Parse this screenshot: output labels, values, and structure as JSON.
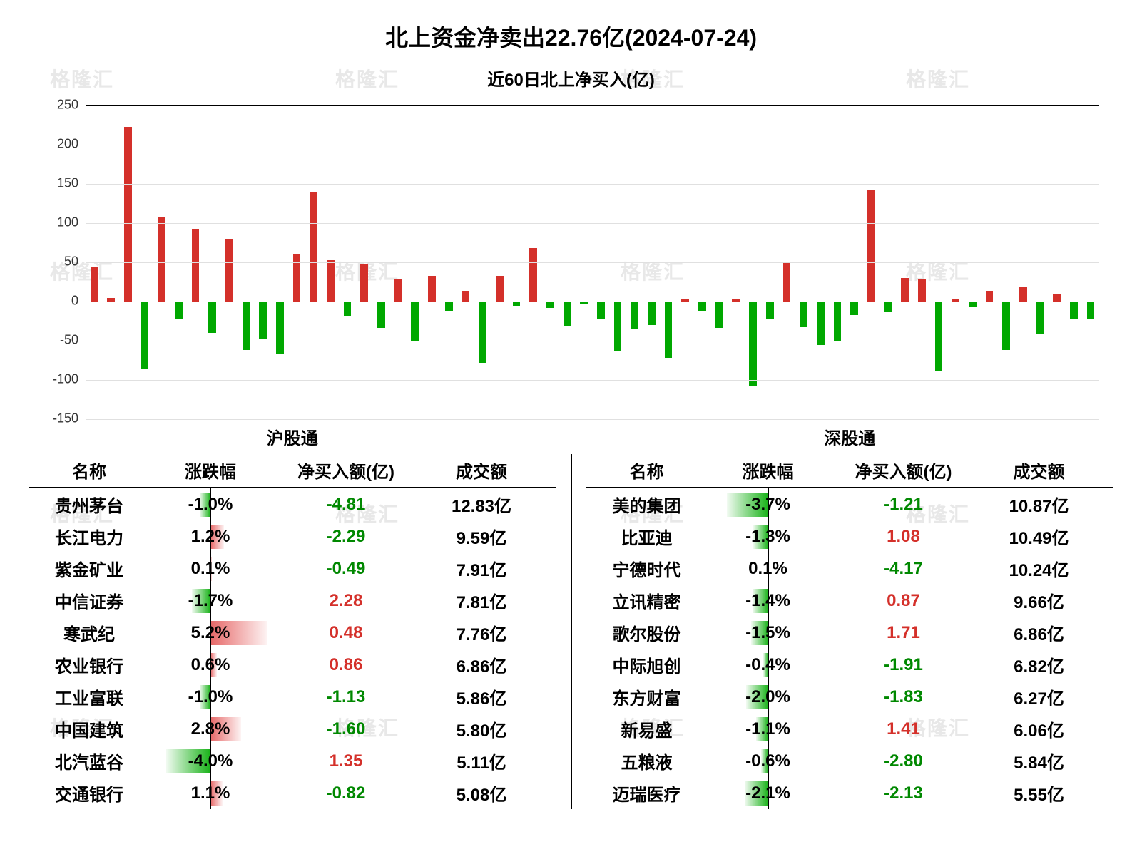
{
  "title": "北上资金净卖出22.76亿(2024-07-24)",
  "subtitle": "近60日北上净买入(亿)",
  "title_fontsize": 32,
  "subtitle_fontsize": 24,
  "watermark_text": "格隆汇",
  "chart": {
    "type": "bar",
    "ylim": [
      -150,
      250
    ],
    "yticks": [
      -150,
      -100,
      -50,
      0,
      50,
      100,
      150,
      200,
      250
    ],
    "tick_fontsize": 18,
    "grid_color": "#e0e0e0",
    "positive_color": "#d4302a",
    "negative_color": "#00a800",
    "background_color": "#ffffff",
    "bar_width_ratio": 0.45,
    "values": [
      45,
      5,
      223,
      -85,
      108,
      -22,
      93,
      -40,
      80,
      -62,
      -48,
      -66,
      60,
      139,
      53,
      -18,
      47,
      -34,
      28,
      -50,
      33,
      -12,
      14,
      -78,
      33,
      -5,
      68,
      -8,
      -32,
      -3,
      -23,
      -64,
      -35,
      -30,
      -72,
      3,
      -12,
      -34,
      3,
      -108,
      -22,
      49,
      -33,
      -55,
      -50,
      -17,
      142,
      -14,
      30,
      28,
      -88,
      3,
      -7,
      14,
      -62,
      19,
      -42,
      10,
      -22,
      -23
    ]
  },
  "tables": {
    "header_fontsize": 24,
    "cell_fontsize": 24,
    "section_title_fontsize": 24,
    "pos_color": "#d4302a",
    "neg_color": "#008800",
    "text_color": "#000000",
    "chg_bar_max_pct": 5.5,
    "columns": [
      "名称",
      "涨跌幅",
      "净买入额(亿)",
      "成交额"
    ],
    "left": {
      "title": "沪股通",
      "rows": [
        {
          "name": "贵州茅台",
          "chg": -1.0,
          "net": -4.81,
          "vol": "12.83亿"
        },
        {
          "name": "长江电力",
          "chg": 1.2,
          "net": -2.29,
          "vol": "9.59亿"
        },
        {
          "name": "紫金矿业",
          "chg": 0.1,
          "net": -0.49,
          "vol": "7.91亿"
        },
        {
          "name": "中信证券",
          "chg": -1.7,
          "net": 2.28,
          "vol": "7.81亿"
        },
        {
          "name": "寒武纪",
          "chg": 5.2,
          "net": 0.48,
          "vol": "7.76亿"
        },
        {
          "name": "农业银行",
          "chg": 0.6,
          "net": 0.86,
          "vol": "6.86亿"
        },
        {
          "name": "工业富联",
          "chg": -1.0,
          "net": -1.13,
          "vol": "5.86亿"
        },
        {
          "name": "中国建筑",
          "chg": 2.8,
          "net": -1.6,
          "vol": "5.80亿"
        },
        {
          "name": "北汽蓝谷",
          "chg": -4.0,
          "net": 1.35,
          "vol": "5.11亿"
        },
        {
          "name": "交通银行",
          "chg": 1.1,
          "net": -0.82,
          "vol": "5.08亿"
        }
      ]
    },
    "right": {
      "title": "深股通",
      "rows": [
        {
          "name": "美的集团",
          "chg": -3.7,
          "net": -1.21,
          "vol": "10.87亿"
        },
        {
          "name": "比亚迪",
          "chg": -1.3,
          "net": 1.08,
          "vol": "10.49亿"
        },
        {
          "name": "宁德时代",
          "chg": 0.1,
          "net": -4.17,
          "vol": "10.24亿"
        },
        {
          "name": "立讯精密",
          "chg": -1.4,
          "net": 0.87,
          "vol": "9.66亿"
        },
        {
          "name": "歌尔股份",
          "chg": -1.5,
          "net": 1.71,
          "vol": "6.86亿"
        },
        {
          "name": "中际旭创",
          "chg": -0.4,
          "net": -1.91,
          "vol": "6.82亿"
        },
        {
          "name": "东方财富",
          "chg": -2.0,
          "net": -1.83,
          "vol": "6.27亿"
        },
        {
          "name": "新易盛",
          "chg": -1.1,
          "net": 1.41,
          "vol": "6.06亿"
        },
        {
          "name": "五粮液",
          "chg": -0.6,
          "net": -2.8,
          "vol": "5.84亿"
        },
        {
          "name": "迈瑞医疗",
          "chg": -2.1,
          "net": -2.13,
          "vol": "5.55亿"
        }
      ]
    }
  }
}
